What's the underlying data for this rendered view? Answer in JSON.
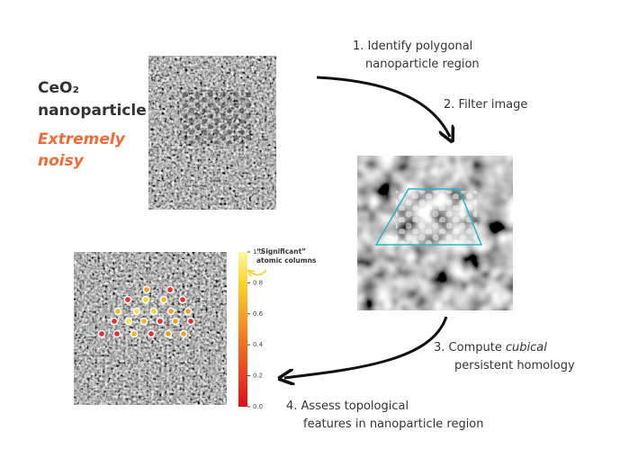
{
  "title": {
    "name": "CeO₂",
    "subtitle": "nanoparticle",
    "note": "Extremely noisy"
  },
  "steps": [
    {
      "lines": [
        "1. Identify polygonal",
        "nanoparticle region"
      ]
    },
    {
      "lines": [
        "2. Filter image"
      ]
    },
    {
      "lead": "3. Compute",
      "emphasis": "cubical",
      "lines": [
        "persistent homology"
      ]
    },
    {
      "lines": [
        "4. Assess topological",
        "features in nanoparticle region"
      ]
    }
  ],
  "colorbar": {
    "range": [
      0,
      1
    ],
    "ticks": [
      {
        "value": 0,
        "label": "0.0"
      },
      {
        "value": 0.2,
        "label": "0.2"
      },
      {
        "value": 0.4,
        "label": "0.4"
      },
      {
        "value": 0.6,
        "label": "0.6"
      },
      {
        "value": 0.8,
        "label": "0.8"
      },
      {
        "value": 1,
        "label": "1.0"
      }
    ]
  },
  "callout": {
    "lines": [
      "“Significant”",
      "atomic columns"
    ]
  }
}
